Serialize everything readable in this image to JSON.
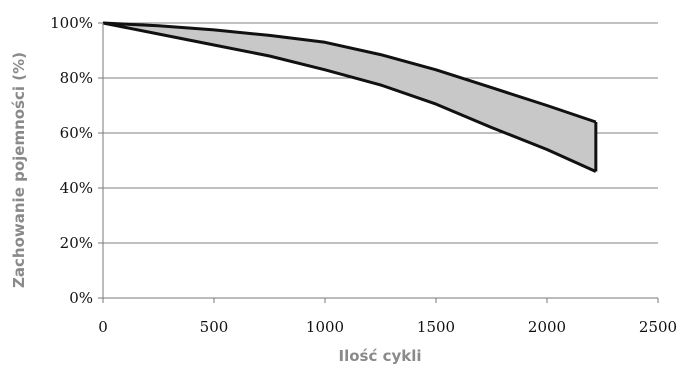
{
  "chart_data": {
    "type": "area",
    "xlabel": "Ilość cykli",
    "ylabel": "Zachowanie pojemności (%)",
    "xlim": [
      0,
      2500
    ],
    "ylim": [
      0,
      100
    ],
    "x_ticks": [
      "0",
      "500",
      "1000",
      "1500",
      "2000",
      "2500"
    ],
    "y_ticks": [
      "0%",
      "20%",
      "40%",
      "60%",
      "80%",
      "100%"
    ],
    "grid": "horizontal",
    "fill_color": "#c8c8c8",
    "line_color": "#111111",
    "grid_color": "#808080",
    "series": [
      {
        "x": [
          0,
          250,
          500,
          750,
          1000,
          1250,
          1500,
          1750,
          2000,
          2220
        ],
        "values": [
          100,
          99,
          97.5,
          95.5,
          93,
          88.5,
          83,
          76.5,
          70,
          64
        ]
      },
      {
        "x": [
          0,
          250,
          500,
          750,
          1000,
          1250,
          1500,
          1750,
          2000,
          2220
        ],
        "values": [
          100,
          96,
          92,
          88,
          83,
          77.5,
          70.5,
          62,
          54,
          46
        ]
      }
    ]
  }
}
